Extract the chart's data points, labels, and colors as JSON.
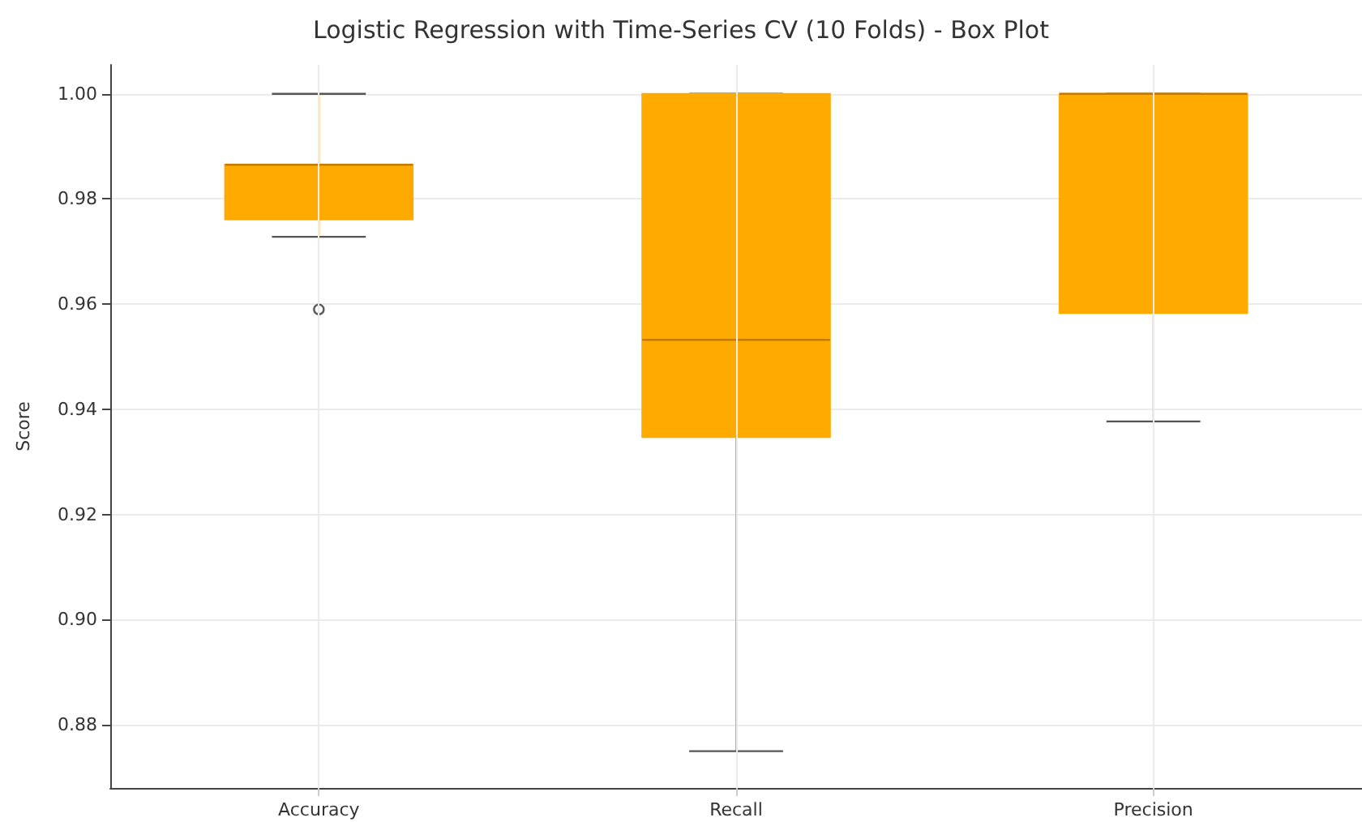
{
  "chart_data": {
    "type": "box",
    "title": "Logistic Regression with Time-Series CV (10 Folds) - Box Plot",
    "ylabel": "Score",
    "categories": [
      "Accuracy",
      "Recall",
      "Precision"
    ],
    "boxes": [
      {
        "low": 0.9728,
        "q1": 0.9761,
        "median": 0.9865,
        "q3": 0.9865,
        "high": 1.0,
        "outliers": [
          0.959
        ]
      },
      {
        "low": 0.875,
        "q1": 0.9347,
        "median": 0.9532,
        "q3": 1.0,
        "high": 1.0
      },
      {
        "low": 0.9377,
        "q1": 0.9583,
        "median": 1.0,
        "q3": 1.0,
        "high": 1.0
      }
    ],
    "color": "#ffaa00",
    "ylim": [
      0.868,
      1.0055
    ],
    "yticks": [
      {
        "value": 0.88,
        "label": "0.88"
      },
      {
        "value": 0.9,
        "label": "0.90"
      },
      {
        "value": 0.92,
        "label": "0.92"
      },
      {
        "value": 0.94,
        "label": "0.94"
      },
      {
        "value": 0.96,
        "label": "0.96"
      },
      {
        "value": 0.98,
        "label": "0.98"
      },
      {
        "value": 1.0,
        "label": "1.00"
      }
    ],
    "grid": true
  }
}
